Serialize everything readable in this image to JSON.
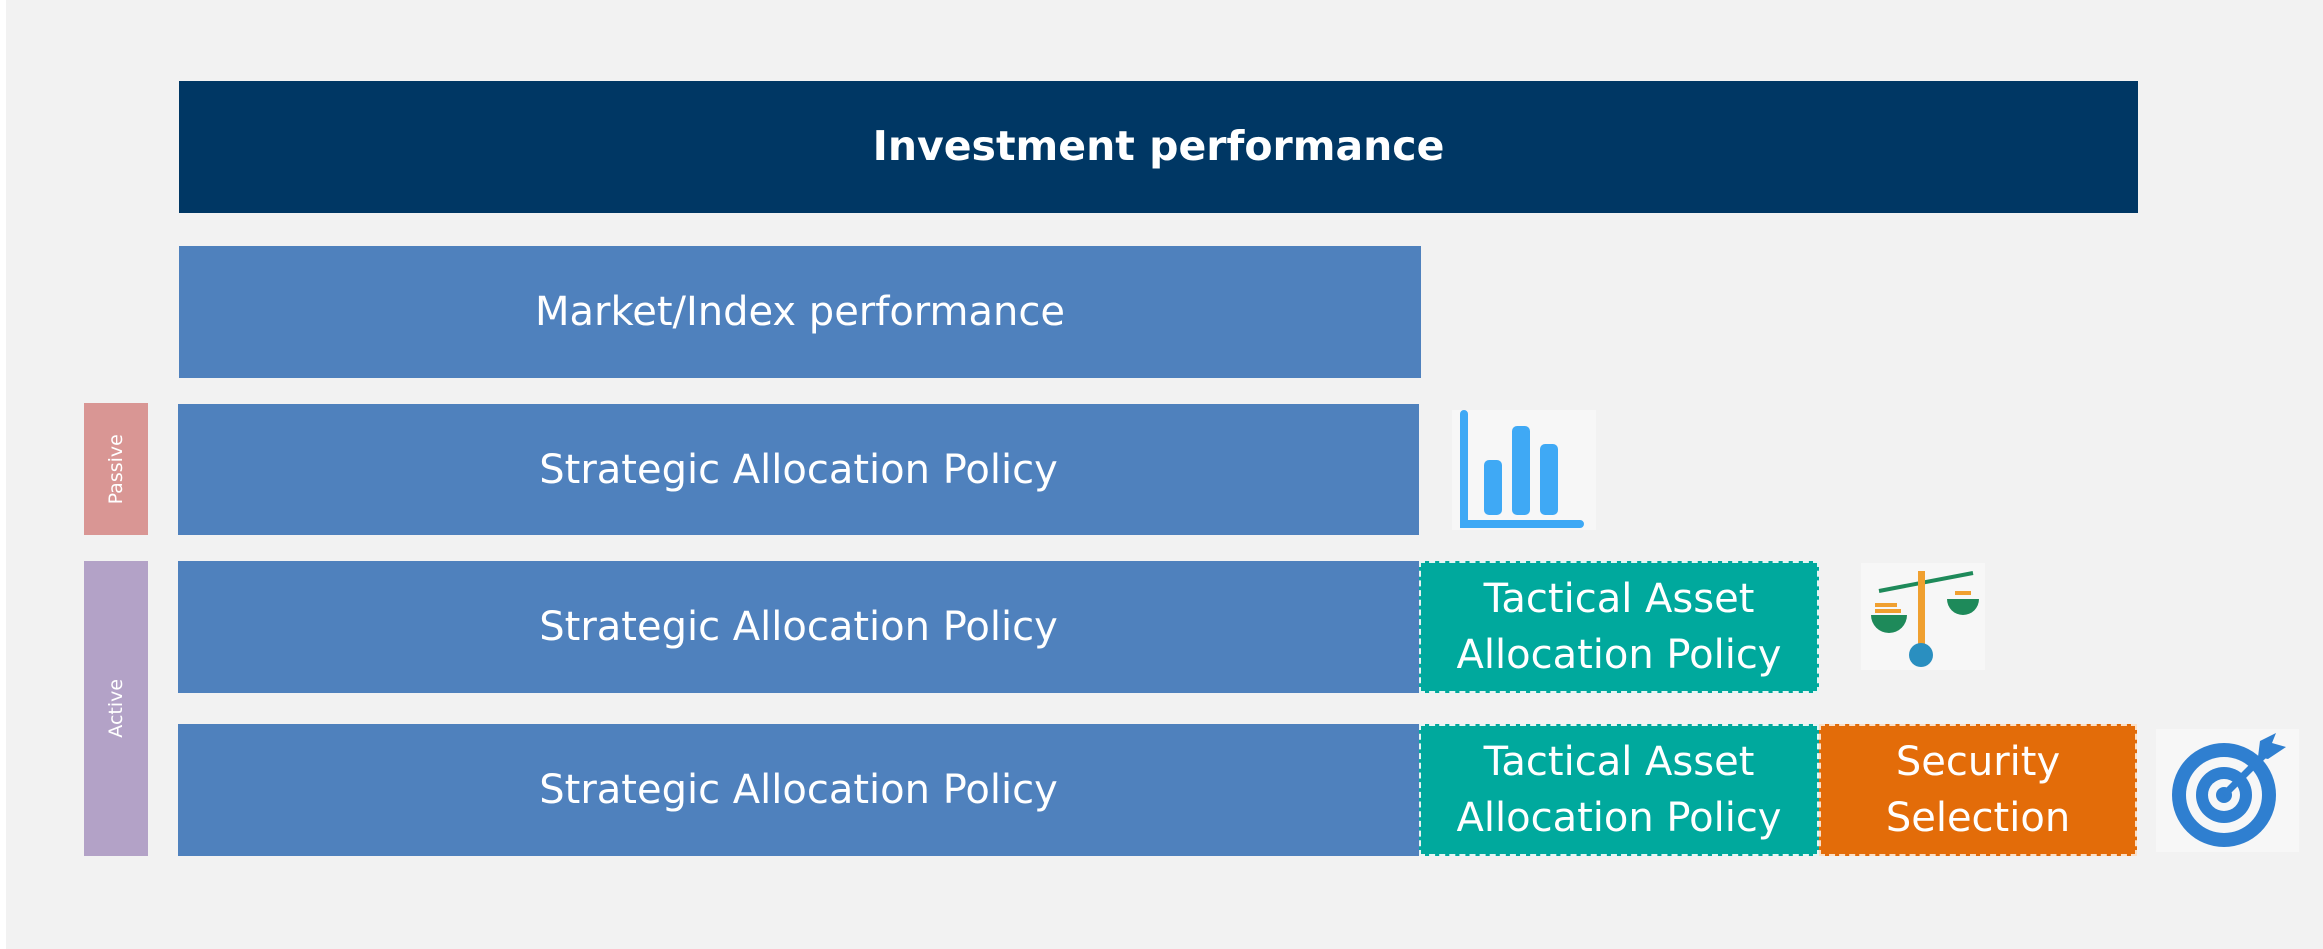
{
  "title": "Investment performance",
  "market": "Market/Index performance",
  "side_labels": [
    "Passive",
    "Active"
  ],
  "rows": [
    {
      "strategic": "Strategic Allocation Policy"
    },
    {
      "strategic": "Strategic Allocation Policy",
      "tactical": "Tactical Asset Allocation Policy"
    },
    {
      "strategic": "Strategic Allocation Policy",
      "tactical": "Tactical Asset Allocation Policy",
      "security": "Security Selection"
    }
  ]
}
